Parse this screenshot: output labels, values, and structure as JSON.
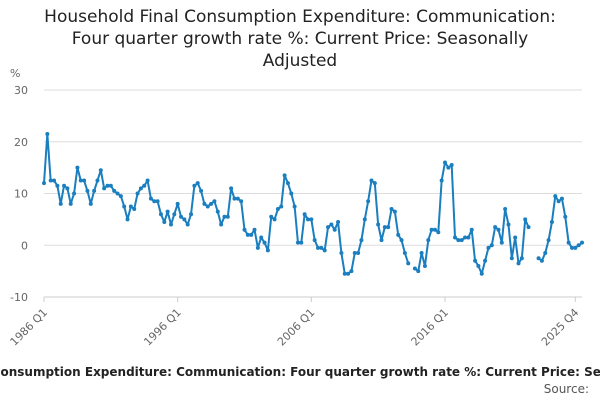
{
  "chart_data": {
    "type": "line",
    "title": "Household Final Consumption Expenditure: Communication: Four quarter growth rate %: Current Price: Seasonally Adjusted",
    "title_lines": [
      "Household Final Consumption Expenditure: Communication:",
      "Four quarter growth rate %: Current Price: Seasonally",
      "Adjusted"
    ],
    "ylabel": "%",
    "xlabel": "",
    "ylim": [
      -10,
      30
    ],
    "yticks": [
      -10,
      0,
      10,
      20,
      30
    ],
    "xticks": [
      "1986 Q1",
      "1996 Q1",
      "2006 Q1",
      "2016 Q1",
      "2025 Q4"
    ],
    "grid": true,
    "start_year": 1986,
    "start_quarter": 1,
    "series": [
      {
        "name": "Household Final Consumption Expenditure: Communication: Four quarter growth rate %: Current Price: Seasonally Adjusted",
        "color": "#1a7ebf",
        "values": [
          12,
          21.5,
          12.5,
          12.5,
          11.5,
          8,
          11.5,
          11,
          8,
          10,
          15,
          12.5,
          12.5,
          10.5,
          8,
          10.5,
          12.5,
          14.5,
          11,
          11.5,
          11.5,
          10.5,
          10,
          9.5,
          7.5,
          5,
          7.5,
          7,
          10,
          11,
          11.5,
          12.5,
          9,
          8.5,
          8.5,
          6,
          4.5,
          6.5,
          4,
          6,
          8,
          5.5,
          5,
          4,
          6,
          11.5,
          12,
          10.5,
          8,
          7.5,
          8,
          8.5,
          6.5,
          4,
          5.5,
          5.5,
          11,
          9,
          9,
          8.5,
          3,
          2,
          2,
          3,
          -0.5,
          1.5,
          0.5,
          -1,
          5.5,
          5,
          7,
          7.5,
          13.5,
          12,
          10,
          7.5,
          0.5,
          0.5,
          6,
          5,
          5,
          1,
          -0.5,
          -0.5,
          -1,
          3.5,
          4,
          3,
          4.5,
          -1.5,
          -5.5,
          -5.5,
          -5,
          -1.5,
          -1.5,
          1,
          5,
          8.5,
          12.5,
          12,
          4,
          1,
          3.5,
          3.5,
          7,
          6.5,
          2,
          1,
          -1.5,
          -3.5,
          null,
          -4.5,
          -5,
          -1.5,
          -4,
          1,
          3,
          3,
          2.5,
          12.5,
          16,
          15,
          15.5,
          1.5,
          1,
          1,
          1.5,
          1.5,
          3,
          -3,
          -4,
          -5.5,
          -3,
          -0.5,
          0,
          3.5,
          3,
          0.5,
          7,
          4,
          -2.5,
          1.5,
          -3.5,
          -2.5,
          5,
          3.5,
          null,
          null,
          -2.5,
          -3,
          -1.5,
          1,
          4.5,
          9.5,
          8.5,
          9,
          5.5,
          0.5,
          -0.5,
          -0.5,
          0,
          0.5
        ]
      }
    ]
  },
  "legend_text": "Household Final Consumption Expenditure: Communication: Four quarter growth rate %: Current Price: Seasonally Adjusted",
  "source_label": "Source:"
}
